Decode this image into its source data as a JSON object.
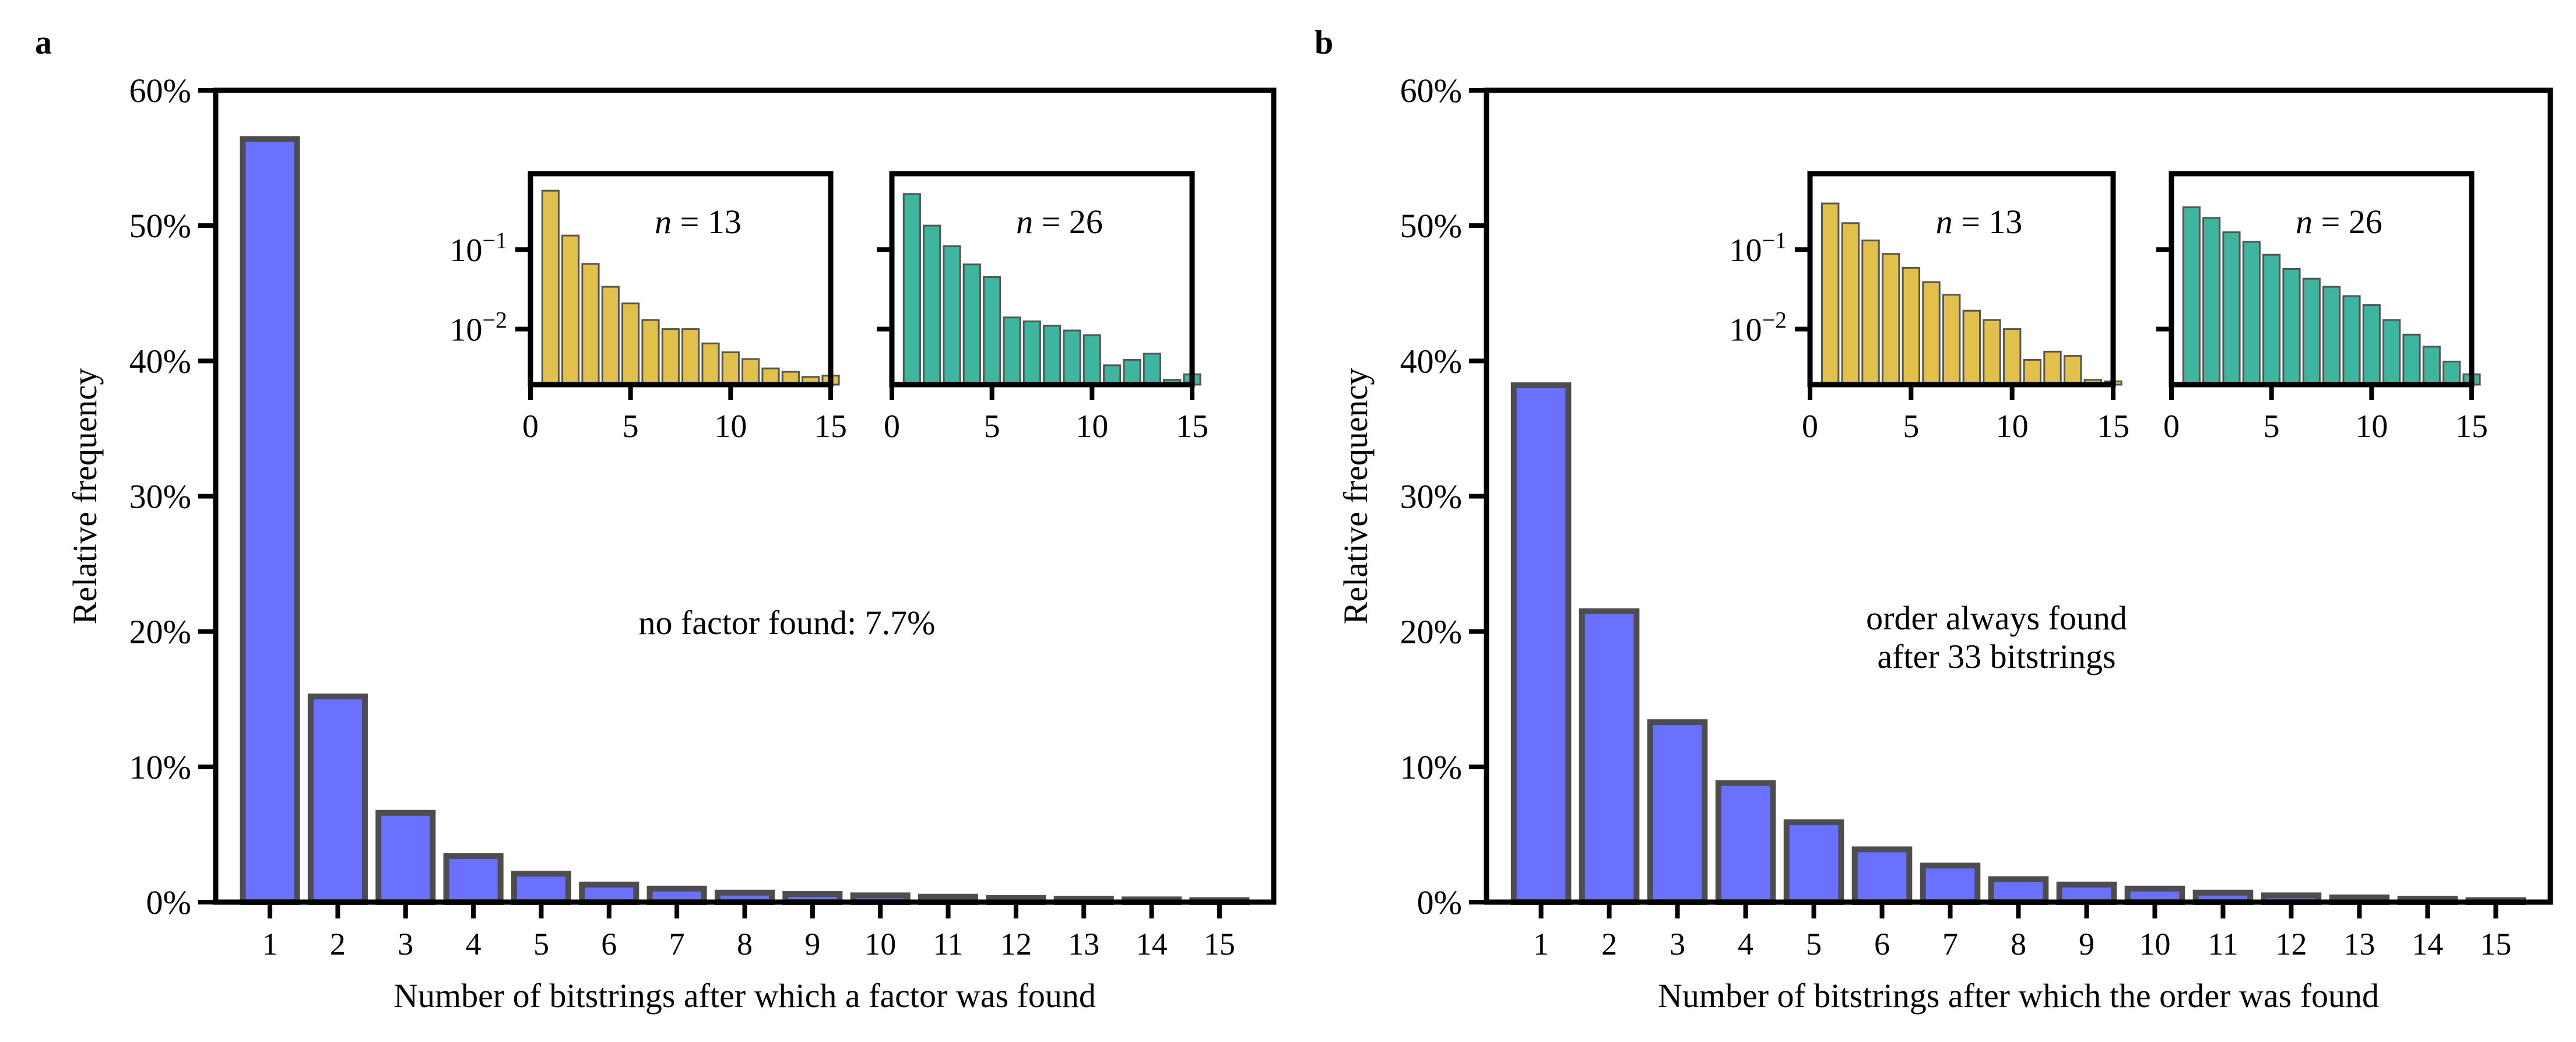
{
  "colors": {
    "main_bar": "#6a70ff",
    "bar_edge": "#4d4d4d",
    "inset_n13": "#e1c04c",
    "inset_n26": "#3db59f",
    "inset_edge": "#555555",
    "annotation_red": "#dd1111",
    "axis": "#000000"
  },
  "chart_data": [
    {
      "panel": "a",
      "panel_label": "a",
      "type": "bar",
      "xlabel": "Number of bitstrings after which a factor was found",
      "ylabel": "Relative frequency",
      "ylim": [
        0,
        60
      ],
      "yticks": [
        0,
        10,
        20,
        30,
        40,
        50,
        60
      ],
      "ytick_labels": [
        "0%",
        "10%",
        "20%",
        "30%",
        "40%",
        "50%",
        "60%"
      ],
      "categories": [
        "1",
        "2",
        "3",
        "4",
        "5",
        "6",
        "7",
        "8",
        "9",
        "10",
        "11",
        "12",
        "13",
        "14",
        "15"
      ],
      "values": [
        56.4,
        15.2,
        6.6,
        3.4,
        2.1,
        1.3,
        1.0,
        0.7,
        0.6,
        0.5,
        0.4,
        0.3,
        0.25,
        0.2,
        0.15
      ],
      "annotation": {
        "lines": [
          "no factor found: 7.7%"
        ],
        "color": "annotation_red"
      },
      "insets": [
        {
          "name": "n13",
          "label_var": "n",
          "label_eq": " = 13",
          "color": "inset_n13",
          "yscale": "log",
          "ylim": [
            0.002,
            0.9
          ],
          "yticks": [
            0.1,
            0.01
          ],
          "ytick_base": "10",
          "ytick_exponents": [
            "−1",
            "−2"
          ],
          "show_ytick_labels": true,
          "xlim": [
            0,
            15
          ],
          "xticks": [
            "0",
            "5",
            "10",
            "15"
          ],
          "bars": [
            {
              "x": 1,
              "v": 0.55
            },
            {
              "x": 2,
              "v": 0.15
            },
            {
              "x": 3,
              "v": 0.066
            },
            {
              "x": 4,
              "v": 0.034
            },
            {
              "x": 5,
              "v": 0.021
            },
            {
              "x": 6,
              "v": 0.013
            },
            {
              "x": 7,
              "v": 0.01
            },
            {
              "x": 8,
              "v": 0.01
            },
            {
              "x": 9,
              "v": 0.0066
            },
            {
              "x": 10,
              "v": 0.0051
            },
            {
              "x": 11,
              "v": 0.0042
            },
            {
              "x": 12,
              "v": 0.0032
            },
            {
              "x": 13,
              "v": 0.0029
            },
            {
              "x": 14,
              "v": 0.0025
            },
            {
              "x": 15,
              "v": 0.0026
            }
          ]
        },
        {
          "name": "n26",
          "label_var": "n",
          "label_eq": " = 26",
          "color": "inset_n26",
          "yscale": "log",
          "ylim": [
            0.002,
            0.9
          ],
          "yticks": [
            0.1,
            0.01
          ],
          "show_ytick_labels": false,
          "xlim": [
            0,
            15
          ],
          "xticks": [
            "0",
            "5",
            "10",
            "15"
          ],
          "bars": [
            {
              "x": 1,
              "v": 0.5
            },
            {
              "x": 2,
              "v": 0.2
            },
            {
              "x": 3,
              "v": 0.11
            },
            {
              "x": 4,
              "v": 0.065
            },
            {
              "x": 5,
              "v": 0.045
            },
            {
              "x": 6,
              "v": 0.014
            },
            {
              "x": 7,
              "v": 0.0125
            },
            {
              "x": 8,
              "v": 0.011
            },
            {
              "x": 9,
              "v": 0.0096
            },
            {
              "x": 10,
              "v": 0.0084
            },
            {
              "x": 11,
              "v": 0.0035
            },
            {
              "x": 12,
              "v": 0.0041
            },
            {
              "x": 13,
              "v": 0.0049
            },
            {
              "x": 14,
              "v": 0.0023
            },
            {
              "x": 15,
              "v": 0.0027
            }
          ]
        }
      ]
    },
    {
      "panel": "b",
      "panel_label": "b",
      "type": "bar",
      "xlabel": "Number of bitstrings after which the order was found",
      "ylabel": "Relative frequency",
      "ylim": [
        0,
        60
      ],
      "yticks": [
        0,
        10,
        20,
        30,
        40,
        50,
        60
      ],
      "ytick_labels": [
        "0%",
        "10%",
        "20%",
        "30%",
        "40%",
        "50%",
        "60%"
      ],
      "categories": [
        "1",
        "2",
        "3",
        "4",
        "5",
        "6",
        "7",
        "8",
        "9",
        "10",
        "11",
        "12",
        "13",
        "14",
        "15"
      ],
      "values": [
        38.2,
        21.5,
        13.3,
        8.8,
        5.9,
        3.9,
        2.7,
        1.7,
        1.3,
        1.0,
        0.7,
        0.5,
        0.35,
        0.25,
        0.15
      ],
      "annotation": {
        "lines": [
          "order always found",
          "after 33 bitstrings"
        ],
        "color": "axis"
      },
      "insets": [
        {
          "name": "n13",
          "label_var": "n",
          "label_eq": " = 13",
          "color": "inset_n13",
          "yscale": "log",
          "ylim": [
            0.002,
            0.9
          ],
          "yticks": [
            0.1,
            0.01
          ],
          "ytick_base": "10",
          "ytick_exponents": [
            "−1",
            "−2"
          ],
          "show_ytick_labels": true,
          "xlim": [
            0,
            15
          ],
          "xticks": [
            "0",
            "5",
            "10",
            "15"
          ],
          "bars": [
            {
              "x": 1,
              "v": 0.38
            },
            {
              "x": 2,
              "v": 0.215
            },
            {
              "x": 3,
              "v": 0.13
            },
            {
              "x": 4,
              "v": 0.088
            },
            {
              "x": 5,
              "v": 0.059
            },
            {
              "x": 6,
              "v": 0.039
            },
            {
              "x": 7,
              "v": 0.027
            },
            {
              "x": 8,
              "v": 0.017
            },
            {
              "x": 9,
              "v": 0.013
            },
            {
              "x": 10,
              "v": 0.01
            },
            {
              "x": 11,
              "v": 0.0041
            },
            {
              "x": 12,
              "v": 0.0052
            },
            {
              "x": 13,
              "v": 0.0046
            },
            {
              "x": 14,
              "v": 0.0023
            },
            {
              "x": 15,
              "v": 0.0022
            }
          ]
        },
        {
          "name": "n26",
          "label_var": "n",
          "label_eq": " = 26",
          "color": "inset_n26",
          "yscale": "log",
          "ylim": [
            0.002,
            0.9
          ],
          "yticks": [
            0.1,
            0.01
          ],
          "show_ytick_labels": false,
          "xlim": [
            0,
            15
          ],
          "xticks": [
            "0",
            "5",
            "10",
            "15"
          ],
          "bars": [
            {
              "x": 1,
              "v": 0.34
            },
            {
              "x": 2,
              "v": 0.25
            },
            {
              "x": 3,
              "v": 0.165
            },
            {
              "x": 4,
              "v": 0.125
            },
            {
              "x": 5,
              "v": 0.086
            },
            {
              "x": 6,
              "v": 0.057
            },
            {
              "x": 7,
              "v": 0.043
            },
            {
              "x": 8,
              "v": 0.034
            },
            {
              "x": 9,
              "v": 0.026
            },
            {
              "x": 10,
              "v": 0.02
            },
            {
              "x": 11,
              "v": 0.013
            },
            {
              "x": 12,
              "v": 0.0085
            },
            {
              "x": 13,
              "v": 0.006
            },
            {
              "x": 14,
              "v": 0.0039
            },
            {
              "x": 15,
              "v": 0.0027
            }
          ]
        }
      ]
    }
  ]
}
